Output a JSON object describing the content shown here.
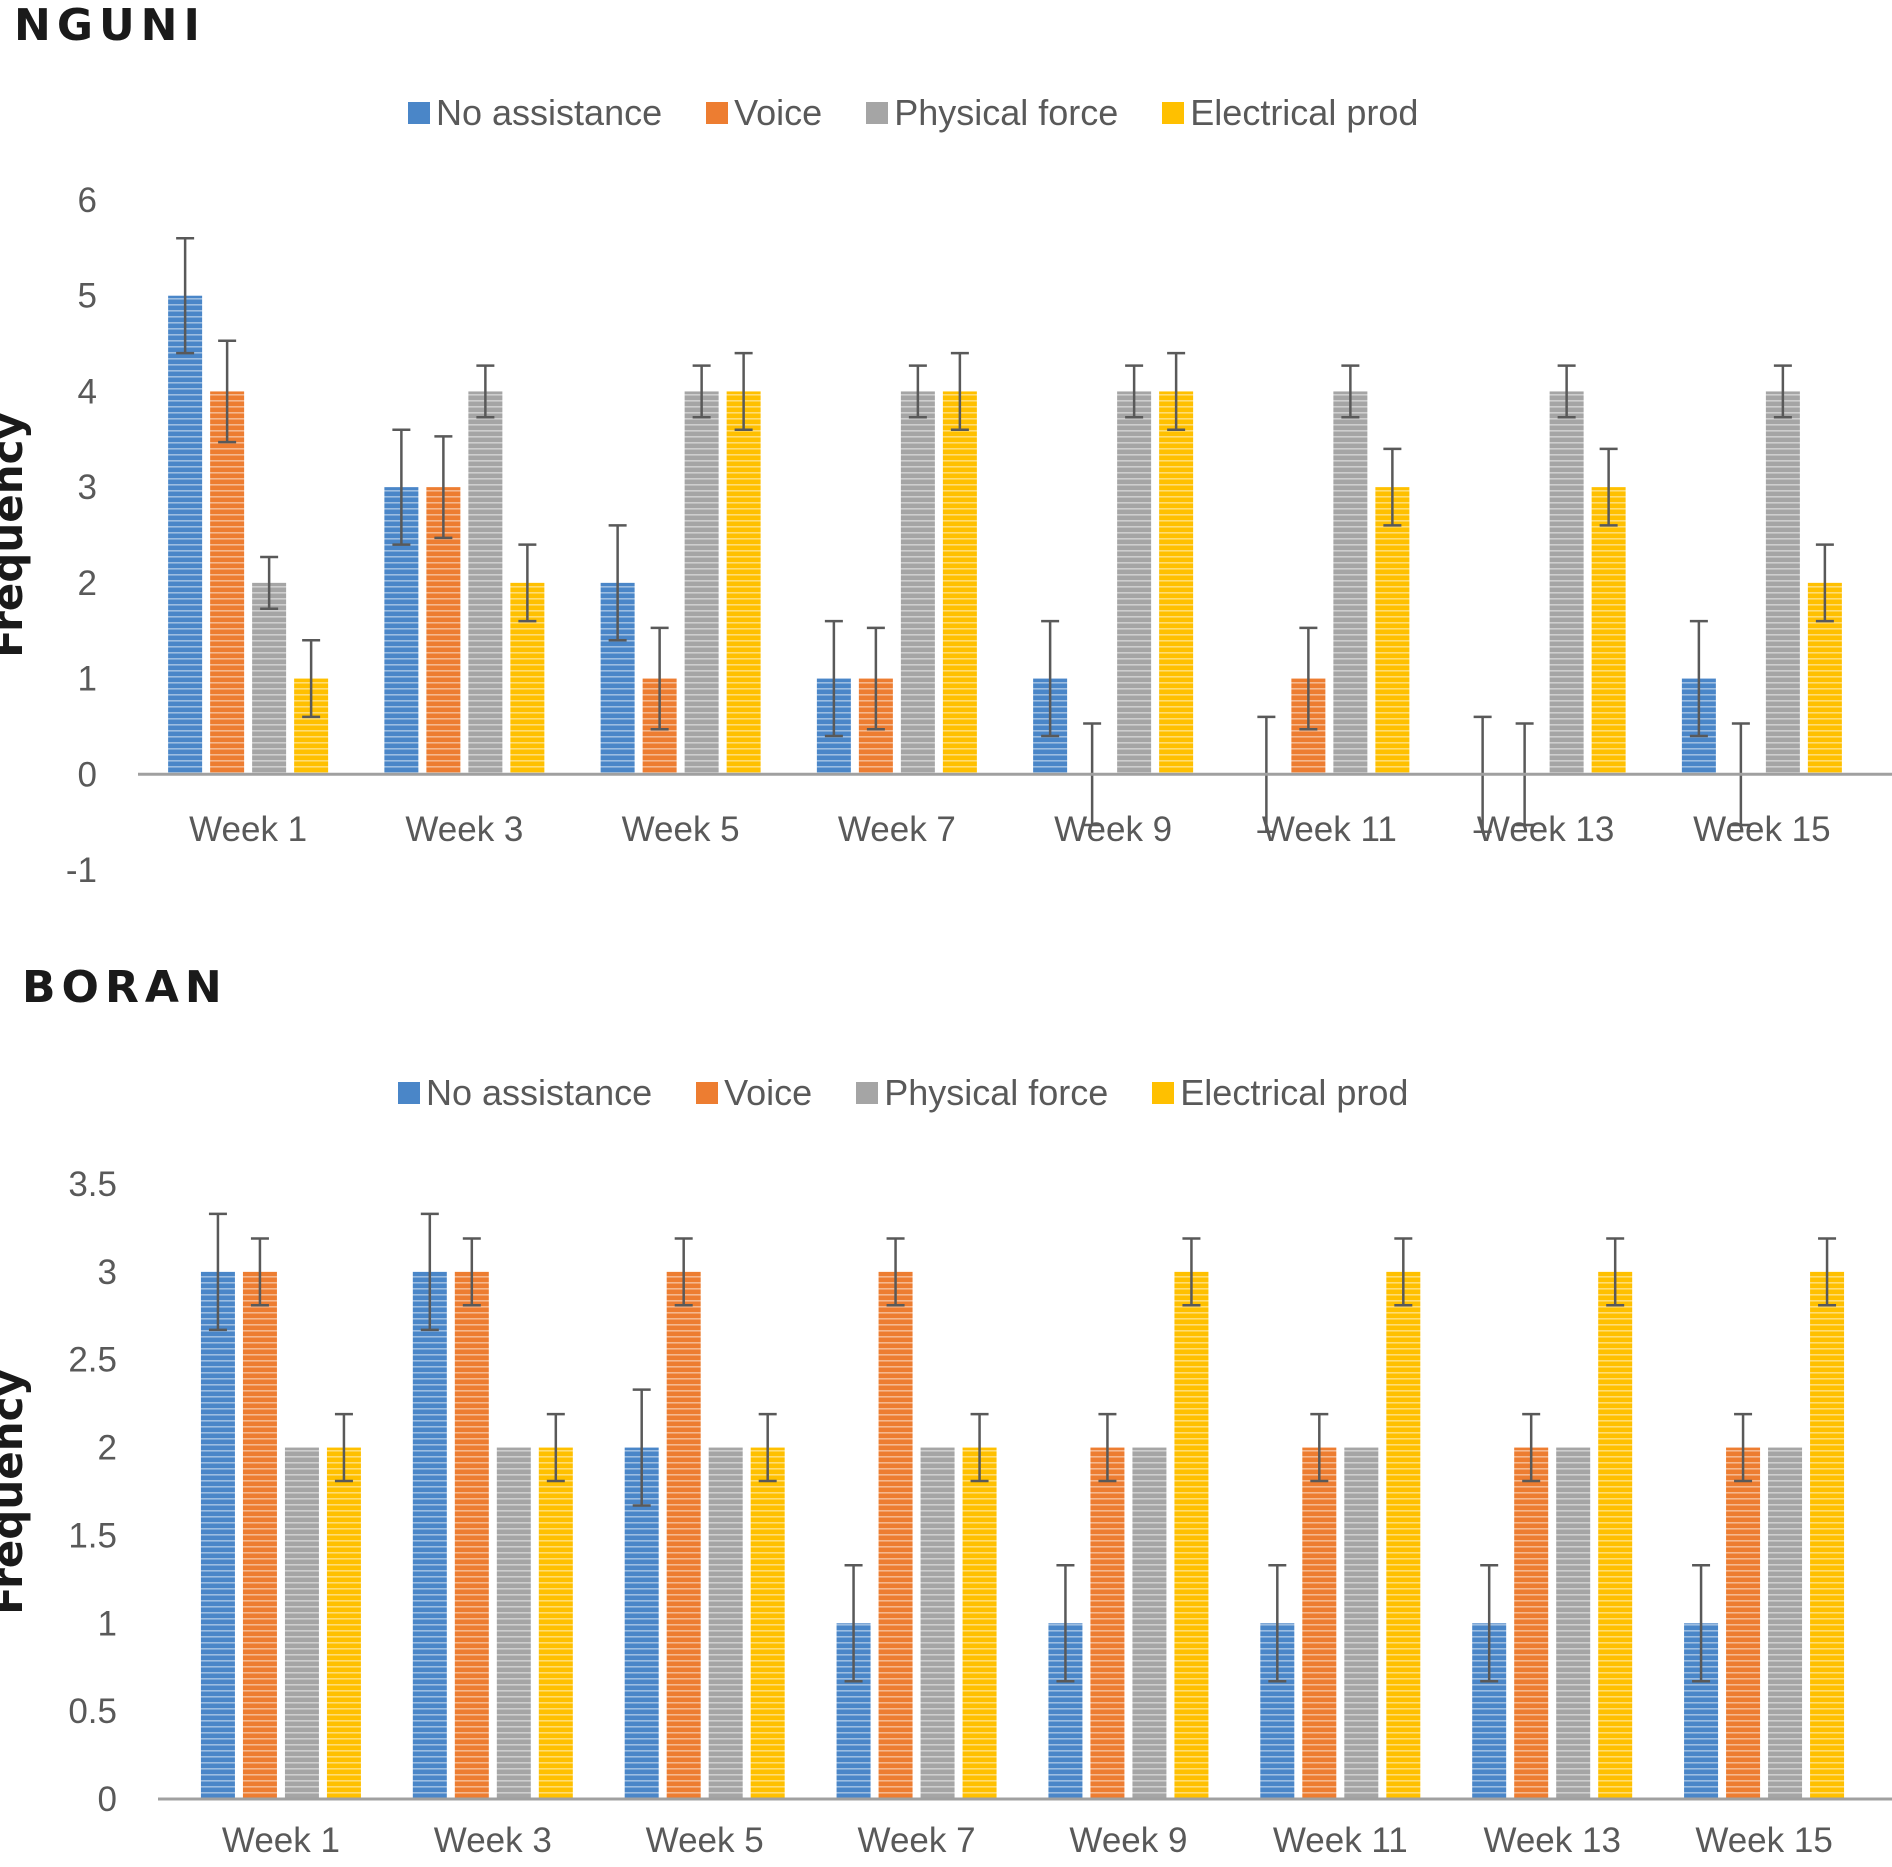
{
  "chart_data": [
    {
      "type": "bar",
      "title": "NGUNI",
      "xlabel": "",
      "ylabel": "Frequency",
      "ylim": [
        -1,
        6
      ],
      "yticks": [
        -1,
        0,
        1,
        2,
        3,
        4,
        5,
        6
      ],
      "ytick_labels": [
        "-1",
        "0",
        "1",
        "2",
        "3",
        "4",
        "5",
        "6"
      ],
      "categories": [
        "Week 1",
        "Week 3",
        "Week 5",
        "Week 7",
        "Week 9",
        "Week 11",
        "Week 13",
        "Week 15"
      ],
      "legend_position": "top-center",
      "series": [
        {
          "name": "No assistance",
          "color": "#4a86c8",
          "values": [
            5,
            3,
            2,
            1,
            1,
            0,
            0,
            1
          ],
          "err_low": [
            0.6,
            0.6,
            0.6,
            0.6,
            0.6,
            0.6,
            0.6,
            0.6
          ],
          "err_high": [
            0.6,
            0.6,
            0.6,
            0.6,
            0.6,
            0.6,
            0.6,
            0.6
          ]
        },
        {
          "name": "Voice",
          "color": "#ed7d31",
          "values": [
            4,
            3,
            1,
            1,
            0,
            1,
            0,
            0
          ],
          "err_low": [
            0.53,
            0.53,
            0.53,
            0.53,
            0.53,
            0.53,
            0.53,
            0.53
          ],
          "err_high": [
            0.53,
            0.53,
            0.53,
            0.53,
            0.53,
            0.53,
            0.53,
            0.53
          ]
        },
        {
          "name": "Physical force",
          "color": "#a5a5a5",
          "values": [
            2,
            4,
            4,
            4,
            4,
            4,
            4,
            4
          ],
          "err_low": [
            0.27,
            0.27,
            0.27,
            0.27,
            0.27,
            0.27,
            0.27,
            0.27
          ],
          "err_high": [
            0.27,
            0.27,
            0.27,
            0.27,
            0.27,
            0.27,
            0.27,
            0.27
          ]
        },
        {
          "name": "Electrical prod",
          "color": "#ffc000",
          "values": [
            1,
            2,
            4,
            4,
            4,
            3,
            3,
            2
          ],
          "err_low": [
            0.4,
            0.4,
            0.4,
            0.4,
            0.4,
            0.4,
            0.4,
            0.4
          ],
          "err_high": [
            0.4,
            0.4,
            0.4,
            0.4,
            0.4,
            0.4,
            0.4,
            0.4
          ]
        }
      ]
    },
    {
      "type": "bar",
      "title": "BORAN",
      "xlabel": "",
      "ylabel": "Frequency",
      "ylim": [
        0,
        3.5
      ],
      "yticks": [
        0,
        0.5,
        1,
        1.5,
        2,
        2.5,
        3,
        3.5
      ],
      "ytick_labels": [
        "0",
        "0.5",
        "1",
        "1.5",
        "2",
        "2.5",
        "3",
        "3.5"
      ],
      "categories": [
        "Week 1",
        "Week 3",
        "Week 5",
        "Week 7",
        "Week 9",
        "Week 11",
        "Week 13",
        "Week 15"
      ],
      "legend_position": "top-center",
      "series": [
        {
          "name": "No assistance",
          "color": "#4a86c8",
          "values": [
            3,
            3,
            2,
            1,
            1,
            1,
            1,
            1
          ],
          "err_low": [
            0.33,
            0.33,
            0.33,
            0.33,
            0.33,
            0.33,
            0.33,
            0.33
          ],
          "err_high": [
            0.33,
            0.33,
            0.33,
            0.33,
            0.33,
            0.33,
            0.33,
            0.33
          ]
        },
        {
          "name": "Voice",
          "color": "#ed7d31",
          "values": [
            3,
            3,
            3,
            3,
            2,
            2,
            2,
            2
          ],
          "err_low": [
            0.19,
            0.19,
            0.19,
            0.19,
            0.19,
            0.19,
            0.19,
            0.19
          ],
          "err_high": [
            0.19,
            0.19,
            0.19,
            0.19,
            0.19,
            0.19,
            0.19,
            0.19
          ]
        },
        {
          "name": "Physical force",
          "color": "#a5a5a5",
          "values": [
            2,
            2,
            2,
            2,
            2,
            2,
            2,
            2
          ],
          "err_low": [
            0,
            0,
            0,
            0,
            0,
            0,
            0,
            0
          ],
          "err_high": [
            0,
            0,
            0,
            0,
            0,
            0,
            0,
            0
          ]
        },
        {
          "name": "Electrical prod",
          "color": "#ffc000",
          "values": [
            2,
            2,
            2,
            2,
            3,
            3,
            3,
            3
          ],
          "err_low": [
            0.19,
            0.19,
            0.19,
            0.19,
            0.19,
            0.19,
            0.19,
            0.19
          ],
          "err_high": [
            0.19,
            0.19,
            0.19,
            0.19,
            0.19,
            0.19,
            0.19,
            0.19
          ]
        }
      ]
    }
  ]
}
